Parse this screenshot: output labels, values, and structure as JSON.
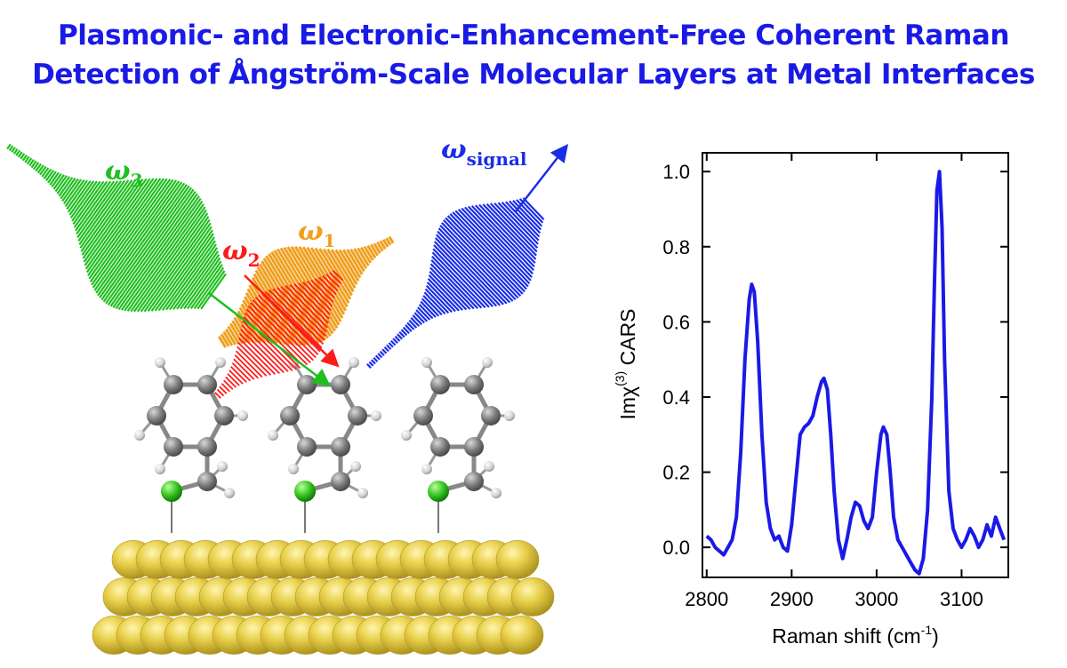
{
  "title": {
    "line1": "Plasmonic- and Electronic-Enhancement-Free Coherent Raman",
    "line2": "Detection of Ångström-Scale Molecular Layers at Metal Interfaces"
  },
  "scheme": {
    "omega3": {
      "symbol": "ω",
      "sub": "3",
      "color": "#1fbf1f"
    },
    "omega2": {
      "symbol": "ω",
      "sub": "2",
      "color": "#ff1a1a"
    },
    "omega1": {
      "symbol": "ω",
      "sub": "1",
      "color": "#f0a020"
    },
    "signal": {
      "symbol": "ω",
      "sub": "signal",
      "color": "#1a2ee6"
    }
  },
  "chart_data": {
    "type": "line",
    "xlabel": "Raman shift (cm",
    "xlabel_sup": "-1",
    "xlabel_end": ")",
    "ylabel": "Imχ",
    "ylabel_sup": "(3)",
    "ylabel_end": " CARS",
    "xlim": [
      2795,
      3155
    ],
    "ylim": [
      -0.08,
      1.05
    ],
    "xticks": [
      "2800",
      "2900",
      "3000",
      "3100"
    ],
    "xtick_values": [
      2800,
      2900,
      3000,
      3100
    ],
    "yticks": [
      "0.0",
      "0.2",
      "0.4",
      "0.6",
      "0.8",
      "1.0"
    ],
    "ytick_values": [
      0.0,
      0.2,
      0.4,
      0.6,
      0.8,
      1.0
    ],
    "color": "#1a1ae6",
    "series": [
      {
        "x": [
          2800,
          2805,
          2810,
          2815,
          2820,
          2825,
          2830,
          2835,
          2840,
          2845,
          2850,
          2853,
          2856,
          2860,
          2865,
          2870,
          2875,
          2880,
          2885,
          2890,
          2895,
          2900,
          2905,
          2910,
          2915,
          2920,
          2925,
          2930,
          2935,
          2938,
          2942,
          2946,
          2950,
          2955,
          2960,
          2965,
          2970,
          2975,
          2980,
          2985,
          2990,
          2995,
          3000,
          3005,
          3008,
          3012,
          3016,
          3020,
          3025,
          3030,
          3035,
          3040,
          3045,
          3050,
          3055,
          3060,
          3065,
          3068,
          3071,
          3074,
          3077,
          3080,
          3085,
          3090,
          3095,
          3100,
          3105,
          3110,
          3115,
          3120,
          3125,
          3130,
          3135,
          3140,
          3145,
          3150
        ],
        "y": [
          0.03,
          0.02,
          0.0,
          -0.01,
          -0.02,
          0.0,
          0.02,
          0.08,
          0.25,
          0.5,
          0.66,
          0.7,
          0.68,
          0.55,
          0.3,
          0.12,
          0.05,
          0.02,
          0.03,
          0.0,
          -0.01,
          0.06,
          0.18,
          0.3,
          0.32,
          0.33,
          0.35,
          0.4,
          0.44,
          0.45,
          0.42,
          0.3,
          0.15,
          0.02,
          -0.03,
          0.02,
          0.08,
          0.12,
          0.11,
          0.07,
          0.05,
          0.08,
          0.2,
          0.3,
          0.32,
          0.3,
          0.2,
          0.08,
          0.02,
          0.0,
          -0.02,
          -0.04,
          -0.06,
          -0.07,
          -0.03,
          0.1,
          0.4,
          0.7,
          0.95,
          1.0,
          0.85,
          0.5,
          0.15,
          0.05,
          0.02,
          0.0,
          0.02,
          0.05,
          0.03,
          0.0,
          0.02,
          0.06,
          0.03,
          0.08,
          0.05,
          0.02
        ]
      }
    ]
  }
}
